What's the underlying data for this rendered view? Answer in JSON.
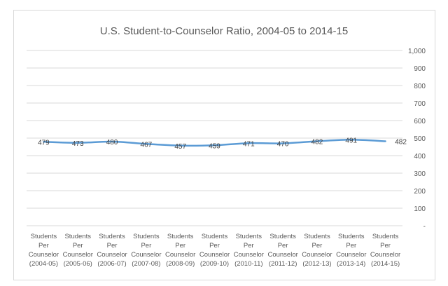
{
  "chart_data": {
    "type": "line",
    "title": "U.S. Student-to-Counselor Ratio, 2004-05 to 2014-15",
    "categories": [
      [
        "Students",
        "Per",
        "Counselor",
        "(2004-05)"
      ],
      [
        "Students",
        "Per",
        "Counselor",
        "(2005-06)"
      ],
      [
        "Students",
        "Per",
        "Counselor",
        "(2006-07)"
      ],
      [
        "Students",
        "Per",
        "Counselor",
        "(2007-08)"
      ],
      [
        "Students",
        "Per",
        "Counselor",
        "(2008-09)"
      ],
      [
        "Students",
        "Per",
        "Counselor",
        "(2009-10)"
      ],
      [
        "Students",
        "Per",
        "Counselor",
        "(2010-11)"
      ],
      [
        "Students",
        "Per",
        "Counselor",
        "(2011-12)"
      ],
      [
        "Students",
        "Per",
        "Counselor",
        "(2012-13)"
      ],
      [
        "Students",
        "Per",
        "Counselor",
        "(2013-14)"
      ],
      [
        "Students",
        "Per",
        "Counselor",
        "(2014-15)"
      ]
    ],
    "values": [
      479,
      473,
      480,
      467,
      457,
      459,
      471,
      470,
      482,
      491,
      482
    ],
    "ylim": [
      0,
      1000
    ],
    "yticks": [
      "-",
      "100",
      "200",
      "300",
      "400",
      "500",
      "600",
      "700",
      "800",
      "900",
      "1,000"
    ],
    "yaxis_position": "right",
    "grid": true,
    "smooth": true,
    "line_color": "#5b9bd5"
  }
}
